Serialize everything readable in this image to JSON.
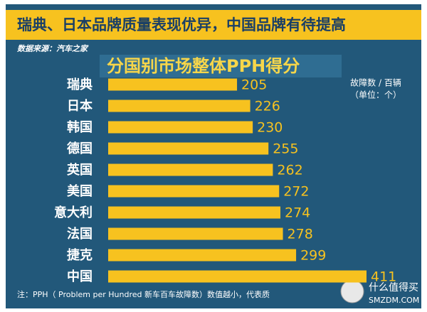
{
  "chart_data": {
    "type": "bar",
    "orientation": "horizontal",
    "headline": "瑞典、日本品牌质量表现优异，中国品牌有待提高",
    "source": "数据来源：汽车之家",
    "title": "分国别市场整体PPH得分",
    "unit_line1": "故障数 / 百辆",
    "unit_line2": "（单位：个）",
    "categories": [
      "瑞典",
      "日本",
      "韩国",
      "德国",
      "英国",
      "美国",
      "意大利",
      "法国",
      "捷克",
      "中国"
    ],
    "values": [
      205,
      226,
      230,
      255,
      262,
      272,
      274,
      278,
      299,
      411
    ],
    "color": "#f7c21f",
    "note": "注：PPH（ Problem per Hundred 新车百车故障数）数值越小，代表质"
  },
  "watermark": {
    "name": "什么值得买",
    "site": "SMZDM.COM"
  }
}
